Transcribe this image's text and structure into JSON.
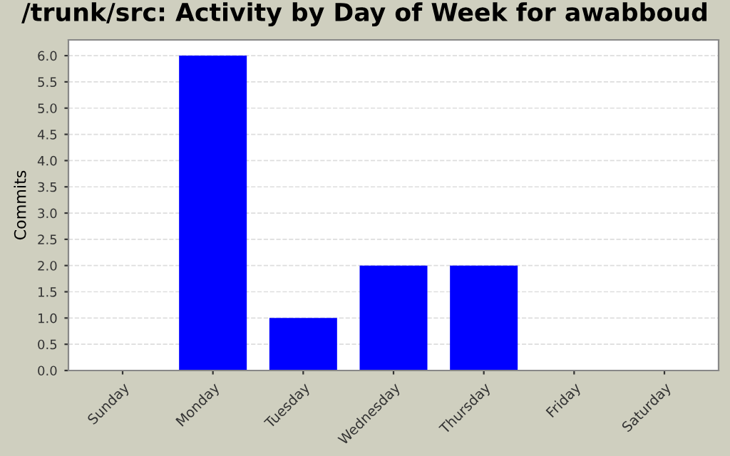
{
  "chart_data": {
    "type": "bar",
    "title": "/trunk/src: Activity by Day of Week for awabboud",
    "ylabel": "Commits",
    "categories": [
      "Sunday",
      "Monday",
      "Tuesday",
      "Wednesday",
      "Thursday",
      "Friday",
      "Saturday"
    ],
    "values": [
      0,
      6,
      1,
      2,
      2,
      0,
      0
    ],
    "color": "#0000ff",
    "ylim": [
      0,
      6.3
    ],
    "yticks": [
      {
        "value": 0,
        "label": "0.0"
      },
      {
        "value": 0.5,
        "label": "0.5"
      },
      {
        "value": 1,
        "label": "1.0"
      },
      {
        "value": 1.5,
        "label": "1.5"
      },
      {
        "value": 2,
        "label": "2.0"
      },
      {
        "value": 2.5,
        "label": "2.5"
      },
      {
        "value": 3,
        "label": "3.0"
      },
      {
        "value": 3.5,
        "label": "3.5"
      },
      {
        "value": 4,
        "label": "4.0"
      },
      {
        "value": 4.5,
        "label": "4.5"
      },
      {
        "value": 5,
        "label": "5.0"
      },
      {
        "value": 5.5,
        "label": "5.5"
      },
      {
        "value": 6,
        "label": "6.0"
      }
    ],
    "grid": "y"
  }
}
